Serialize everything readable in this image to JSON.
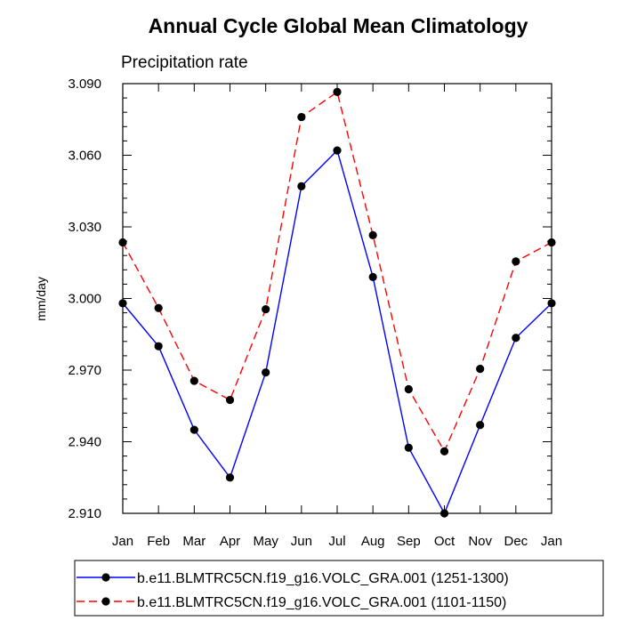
{
  "chart_data": {
    "type": "line",
    "title": "Annual Cycle Global Mean Climatology",
    "subtitle": "Precipitation rate",
    "xlabel": "",
    "ylabel": "mm/day",
    "categories": [
      "Jan",
      "Feb",
      "Mar",
      "Apr",
      "May",
      "Jun",
      "Jul",
      "Aug",
      "Sep",
      "Oct",
      "Nov",
      "Dec",
      "Jan"
    ],
    "ylim": [
      2.91,
      3.09
    ],
    "yticks": [
      "2.910",
      "2.940",
      "2.970",
      "3.000",
      "3.030",
      "3.060",
      "3.090"
    ],
    "ytick_values": [
      2.91,
      2.94,
      2.97,
      3.0,
      3.03,
      3.06,
      3.09
    ],
    "series": [
      {
        "name": "b.e11.BLMTRC5CN.f19_g16.VOLC_GRA.001 (1251-1300)",
        "color": "#0000ff",
        "dash": "solid",
        "values": [
          2.998,
          2.98,
          2.945,
          2.925,
          2.969,
          3.047,
          3.062,
          3.009,
          2.9375,
          2.91,
          2.947,
          2.9835,
          2.998
        ]
      },
      {
        "name": "b.e11.BLMTRC5CN.f19_g16.VOLC_GRA.001 (1101-1150)",
        "color": "#ff0000",
        "dash": "dashed",
        "values": [
          3.0235,
          2.996,
          2.9655,
          2.9575,
          2.9955,
          3.076,
          3.0865,
          3.0265,
          2.962,
          2.936,
          2.9705,
          3.0155,
          3.0235
        ]
      }
    ],
    "legend_position": "bottom",
    "grid": false
  }
}
